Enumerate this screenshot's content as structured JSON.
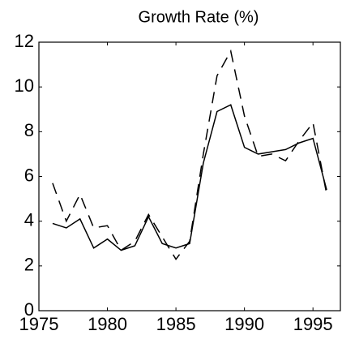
{
  "chart_data": {
    "type": "line",
    "title": "Growth Rate (%)",
    "x": [
      1976,
      1977,
      1978,
      1979,
      1980,
      1981,
      1982,
      1983,
      1984,
      1985,
      1986,
      1987,
      1988,
      1989,
      1990,
      1991,
      1992,
      1993,
      1994,
      1995,
      1996
    ],
    "series": [
      {
        "color": "#000000",
        "dashed": false,
        "values": [
          3.9,
          3.7,
          4.1,
          2.8,
          3.2,
          2.7,
          2.9,
          4.2,
          3.0,
          2.8,
          3.0,
          6.6,
          8.9,
          9.2,
          7.3,
          7.0,
          7.1,
          7.2,
          7.5,
          7.7,
          5.4
        ]
      },
      {
        "color": "#000000",
        "dashed": true,
        "values": [
          5.7,
          4.0,
          5.2,
          3.7,
          3.8,
          2.7,
          3.1,
          4.3,
          3.3,
          2.3,
          3.1,
          7.0,
          10.5,
          11.6,
          8.7,
          6.9,
          7.0,
          6.7,
          7.6,
          8.4,
          5.2
        ]
      }
    ],
    "xlim": [
      1975,
      1997
    ],
    "xticks": [
      1975,
      1980,
      1985,
      1990,
      1995
    ],
    "ylim": [
      0,
      12
    ],
    "yticks": [
      0,
      2,
      4,
      6,
      8,
      10,
      12
    ],
    "grid": false
  }
}
